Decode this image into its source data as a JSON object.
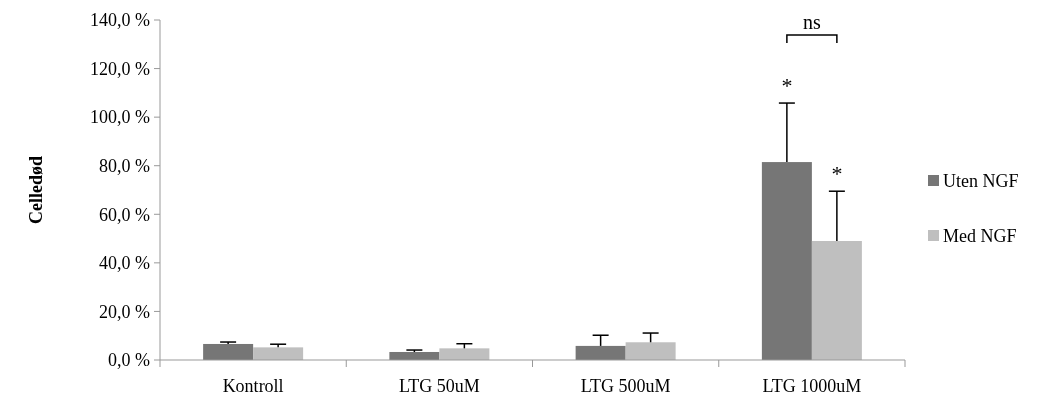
{
  "chart_data": {
    "type": "bar",
    "ylabel": "Celledød",
    "categories": [
      "Kontroll",
      "LTG 50uM",
      "LTG 500uM",
      "LTG 1000uM"
    ],
    "series": [
      {
        "name": "Uten NGF",
        "color": "#767676",
        "values": [
          6.6,
          3.3,
          5.8,
          81.5
        ],
        "errors": [
          [
            6.6,
            7.4
          ],
          [
            3.3,
            4.1
          ],
          [
            5.8,
            10.2
          ],
          [
            81.5,
            105.8
          ]
        ]
      },
      {
        "name": "Med NGF",
        "color": "#bfbfbf",
        "values": [
          5.2,
          4.8,
          7.3,
          49.0
        ],
        "errors": [
          [
            5.2,
            6.5
          ],
          [
            4.8,
            6.7
          ],
          [
            7.3,
            11.1
          ],
          [
            49.0,
            69.5
          ]
        ]
      }
    ],
    "annotations": [
      "*",
      "*",
      "ns"
    ],
    "ylim": [
      0,
      140
    ],
    "yticks": [
      {
        "value": 0,
        "label": "0,0 %"
      },
      {
        "value": 20,
        "label": "20,0 %"
      },
      {
        "value": 40,
        "label": "40,0 %"
      },
      {
        "value": 60,
        "label": "60,0 %"
      },
      {
        "value": 80,
        "label": "80,0 %"
      },
      {
        "value": 100,
        "label": "100,0 %"
      },
      {
        "value": 120,
        "label": "120,0 %"
      },
      {
        "value": 140,
        "label": "140,0 %"
      }
    ],
    "grid": false,
    "legend": "right"
  }
}
